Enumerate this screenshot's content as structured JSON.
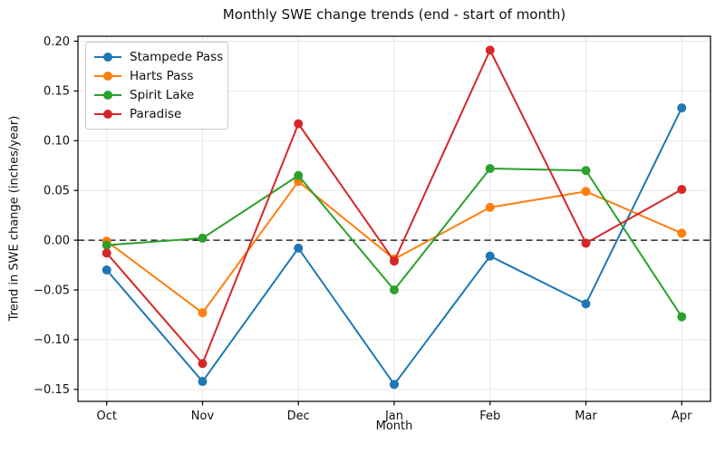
{
  "chart_data": {
    "type": "line",
    "title": "Monthly SWE change trends (end - start of month)",
    "xlabel": "Month",
    "ylabel": "Trend in SWE change (inches/year)",
    "categories": [
      "Oct",
      "Nov",
      "Dec",
      "Jan",
      "Feb",
      "Mar",
      "Apr"
    ],
    "series": [
      {
        "name": "Stampede Pass",
        "color": "#1f77b4",
        "values": [
          -0.03,
          -0.142,
          -0.008,
          -0.145,
          -0.016,
          -0.064,
          0.133
        ]
      },
      {
        "name": "Harts Pass",
        "color": "#ff7f0e",
        "values": [
          -0.001,
          -0.073,
          0.059,
          -0.019,
          0.033,
          0.049,
          0.007
        ]
      },
      {
        "name": "Spirit Lake",
        "color": "#2ca02c",
        "values": [
          -0.005,
          0.002,
          0.065,
          -0.05,
          0.072,
          0.07,
          -0.077
        ]
      },
      {
        "name": "Paradise",
        "color": "#d62728",
        "values": [
          -0.013,
          -0.124,
          0.117,
          -0.021,
          0.191,
          -0.003,
          0.051
        ]
      }
    ],
    "yticks": [
      0.2,
      0.15,
      0.1,
      0.05,
      0.0,
      -0.05,
      -0.1,
      -0.15
    ],
    "ylim": [
      -0.162,
      0.205
    ],
    "xlim_pad": 0.3,
    "grid": true,
    "zero_line": true,
    "legend_position": "upper left",
    "marker": "o",
    "colors": {
      "grid": "#e7e7e7",
      "spine": "#000000",
      "zero_line": "#000000",
      "text": "#111111"
    }
  }
}
